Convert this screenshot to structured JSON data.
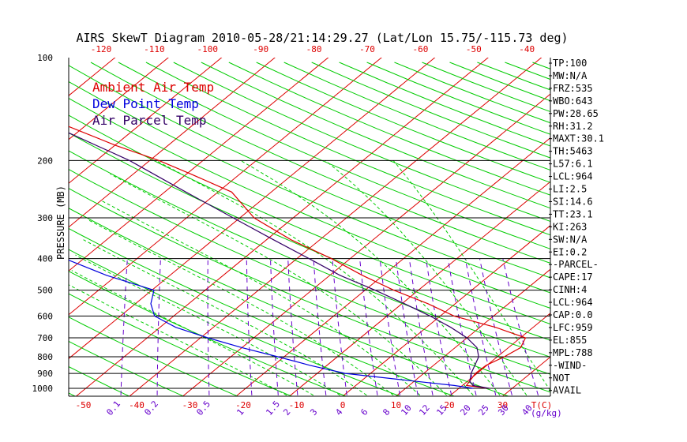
{
  "chart_data": {
    "type": "skew-t",
    "title": "AIRS SkewT Diagram 2010-05-28/21:14:29.27 (Lat/Lon 15.75/-115.73 deg)",
    "ylabel": "PRESSURE (MB)",
    "bottom_axis_unit": "T(C)",
    "mixing_ratio_unit": "(g/kg)",
    "pressure_ticks": [
      100,
      200,
      300,
      400,
      500,
      600,
      700,
      800,
      900,
      1000
    ],
    "pressure_lines": [
      200,
      300,
      400,
      500,
      600,
      700,
      800,
      900,
      1000
    ],
    "top_temp_ticks": [
      "-120",
      "-110",
      "-100",
      "-90",
      "-80",
      "-70",
      "-60",
      "-50",
      "-40"
    ],
    "bottom_temp_ticks": [
      "-50",
      "-40",
      "-30",
      "-20",
      "-10",
      "0",
      "10",
      "20",
      "30"
    ],
    "mixing_ratio_ticks": [
      "0.1",
      "0.2",
      "0.5",
      "1",
      "1.5",
      "2",
      "3",
      "4",
      "6",
      "8",
      "10",
      "12",
      "15",
      "20",
      "25",
      "30",
      "40"
    ],
    "legend": [
      {
        "label": "Ambient Air Temp",
        "color": "#dd0000"
      },
      {
        "label": "Dew Point Temp",
        "color": "#0000dd"
      },
      {
        "label": "Air Parcel Temp",
        "color": "#330066"
      }
    ],
    "series": [
      {
        "name": "Ambient Air Temp",
        "color": "#dd0000",
        "points": [
          [
            1000,
            27.5
          ],
          [
            980,
            23
          ],
          [
            950,
            23.3
          ],
          [
            900,
            23.8
          ],
          [
            850,
            25.2
          ],
          [
            800,
            28
          ],
          [
            750,
            30.4
          ],
          [
            700,
            30.6
          ],
          [
            650,
            24.2
          ],
          [
            600,
            15.6
          ],
          [
            550,
            9.8
          ],
          [
            500,
            2.4
          ],
          [
            450,
            -4.6
          ],
          [
            400,
            -11.6
          ],
          [
            350,
            -20.6
          ],
          [
            300,
            -29.1
          ],
          [
            250,
            -35.2
          ],
          [
            220,
            -44.2
          ],
          [
            200,
            -51.2
          ],
          [
            180,
            -60.3
          ],
          [
            160,
            -69.3
          ],
          [
            145,
            -76.8
          ],
          [
            130,
            -76.4
          ],
          [
            115,
            -74.6
          ],
          [
            100,
            -77
          ]
        ]
      },
      {
        "name": "Dew Point Temp",
        "color": "#0000dd",
        "points": [
          [
            1000,
            24.5
          ],
          [
            980,
            20.7
          ],
          [
            950,
            12.8
          ],
          [
            900,
            -0.6
          ],
          [
            850,
            -7.8
          ],
          [
            800,
            -14.5
          ],
          [
            750,
            -21.9
          ],
          [
            700,
            -29
          ],
          [
            650,
            -35.8
          ],
          [
            600,
            -40.6
          ],
          [
            550,
            -42.2
          ],
          [
            500,
            -42.6
          ],
          [
            450,
            -52.6
          ],
          [
            400,
            -61.6
          ],
          [
            350,
            -71.6
          ],
          [
            300,
            -81.8
          ],
          [
            250,
            -84.4
          ],
          [
            200,
            -90.8
          ],
          [
            150,
            -96.9
          ],
          [
            120,
            -95.3
          ],
          [
            100,
            -96
          ]
        ]
      },
      {
        "name": "Air Parcel Temp",
        "color": "#330066",
        "points": [
          [
            1000,
            27.5
          ],
          [
            980,
            24.2
          ],
          [
            950,
            23.3
          ],
          [
            900,
            23
          ],
          [
            850,
            23.1
          ],
          [
            800,
            23.2
          ],
          [
            750,
            22.2
          ],
          [
            700,
            19.6
          ],
          [
            650,
            15.8
          ],
          [
            600,
            11.1
          ],
          [
            550,
            5.4
          ],
          [
            500,
            -1.1
          ],
          [
            450,
            -8.8
          ],
          [
            400,
            -15.8
          ],
          [
            350,
            -23.9
          ],
          [
            300,
            -33
          ],
          [
            250,
            -43.8
          ],
          [
            200,
            -56.7
          ],
          [
            150,
            -76.5
          ],
          [
            120,
            -92.6
          ],
          [
            100,
            -106.5
          ]
        ]
      }
    ],
    "indices": [
      "TP:100",
      "MW:N/A",
      "FRZ:535",
      "WBO:643",
      "PW:28.65",
      "RH:31.2",
      "MAXT:30.1",
      "TH:5463",
      "L57:6.1",
      "LCL:964",
      "LI:2.5",
      "SI:14.6",
      "TT:23.1",
      "KI:263",
      "SW:N/A",
      "EI:0.2",
      "-PARCEL-",
      "CAPE:17",
      "CINH:4",
      "LCL:964",
      "CAP:0.0",
      "LFC:959",
      "EL:855",
      "MPL:788",
      "-WIND-",
      "NOT",
      "AVAIL"
    ],
    "colors": {
      "isotherm": "#dd0000",
      "dry_adiabat": "#00cc00",
      "moist_adiabat": "#00cc00",
      "mixing_ratio": "#6600cc",
      "isobar": "#000000",
      "text": "#000000"
    }
  }
}
